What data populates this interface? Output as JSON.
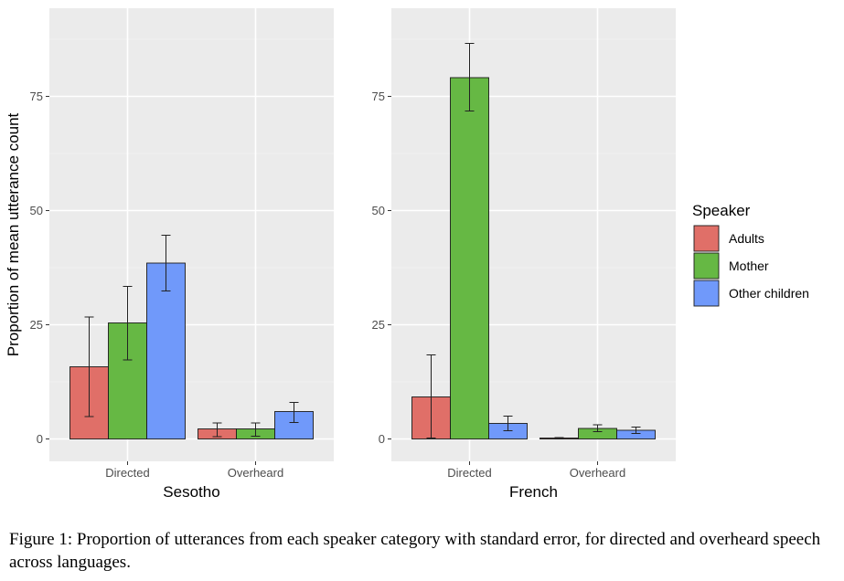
{
  "chart_data": {
    "type": "bar",
    "ylabel": "Proportion of mean utterance count",
    "ylim": [
      0,
      91
    ],
    "yticks": [
      0,
      25,
      50,
      75
    ],
    "grid": true,
    "legend": {
      "title": "Speaker",
      "position": "right",
      "entries": [
        {
          "label": "Adults",
          "color": "#E06F68"
        },
        {
          "label": "Mother",
          "color": "#66B844"
        },
        {
          "label": "Other children",
          "color": "#7099FA"
        }
      ]
    },
    "panels": [
      {
        "xlabel": "Sesotho",
        "categories": [
          "Directed",
          "Overheard"
        ],
        "series": [
          {
            "name": "Adults",
            "values": [
              15.8,
              2.2
            ],
            "err_low": [
              4.9,
              0.5
            ],
            "err_high": [
              26.7,
              3.5
            ]
          },
          {
            "name": "Mother",
            "values": [
              25.4,
              2.2
            ],
            "err_low": [
              17.3,
              0.6
            ],
            "err_high": [
              33.4,
              3.5
            ]
          },
          {
            "name": "Other children",
            "values": [
              38.5,
              6.0
            ],
            "err_low": [
              32.4,
              3.6
            ],
            "err_high": [
              44.6,
              8.0
            ]
          }
        ]
      },
      {
        "xlabel": "French",
        "categories": [
          "Directed",
          "Overheard"
        ],
        "series": [
          {
            "name": "Adults",
            "values": [
              9.2,
              0.2
            ],
            "err_low": [
              0.2,
              0.0
            ],
            "err_high": [
              18.4,
              0.3
            ]
          },
          {
            "name": "Mother",
            "values": [
              79.1,
              2.3
            ],
            "err_low": [
              71.8,
              1.6
            ],
            "err_high": [
              86.6,
              3.1
            ]
          },
          {
            "name": "Other children",
            "values": [
              3.4,
              1.9
            ],
            "err_low": [
              1.8,
              1.2
            ],
            "err_high": [
              5.0,
              2.6
            ]
          }
        ]
      }
    ]
  },
  "caption": "Figure 1: Proportion of utterances from each speaker category with standard error, for directed and overheard speech across languages."
}
